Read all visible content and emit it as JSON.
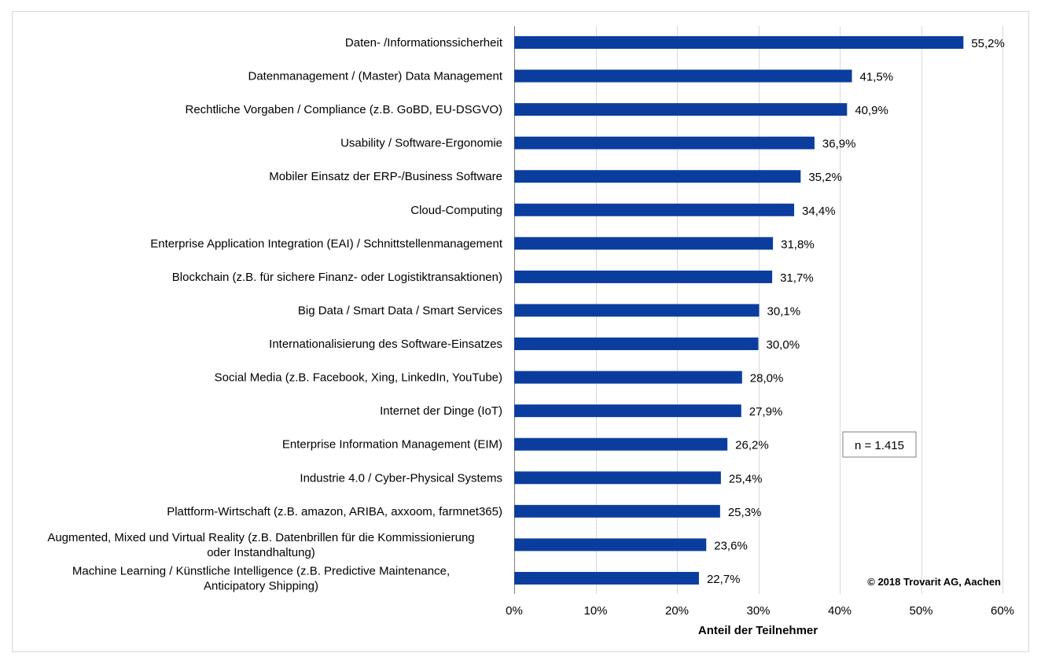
{
  "chart_data": {
    "type": "bar",
    "orientation": "horizontal",
    "categories": [
      [
        "Daten- /Informationssicherheit"
      ],
      [
        "Datenmanagement / (Master) Data Management"
      ],
      [
        "Rechtliche Vorgaben / Compliance (z.B. GoBD, EU-DSGVO)"
      ],
      [
        "Usability / Software-Ergonomie"
      ],
      [
        "Mobiler Einsatz der ERP-/Business Software"
      ],
      [
        "Cloud-Computing"
      ],
      [
        "Enterprise Application Integration (EAI) / Schnittstellenmanagement"
      ],
      [
        "Blockchain (z.B. für sichere Finanz- oder Logistiktransaktionen)"
      ],
      [
        "Big Data / Smart Data / Smart Services"
      ],
      [
        "Internationalisierung des Software-Einsatzes"
      ],
      [
        "Social Media (z.B. Facebook, Xing, LinkedIn, YouTube)"
      ],
      [
        "Internet der Dinge (IoT)"
      ],
      [
        "Enterprise Information Management (EIM)"
      ],
      [
        "Industrie 4.0 / Cyber-Physical Systems"
      ],
      [
        "Plattform-Wirtschaft (z.B. amazon, ARIBA, axxoom, farmnet365)"
      ],
      [
        "Augmented, Mixed und Virtual Reality (z.B. Datenbrillen für die Kommissionierung",
        "oder Instandhaltung)"
      ],
      [
        "Machine Learning / Künstliche Intelligence (z.B. Predictive Maintenance,",
        "Anticipatory Shipping)"
      ]
    ],
    "values": [
      55.2,
      41.5,
      40.9,
      36.9,
      35.2,
      34.4,
      31.8,
      31.7,
      30.1,
      30.0,
      28.0,
      27.9,
      26.2,
      25.4,
      25.3,
      23.6,
      22.7
    ],
    "value_labels": [
      "55,2%",
      "41,5%",
      "40,9%",
      "36,9%",
      "35,2%",
      "34,4%",
      "31,8%",
      "31,7%",
      "30,1%",
      "30,0%",
      "28,0%",
      "27,9%",
      "26,2%",
      "25,4%",
      "25,3%",
      "23,6%",
      "22,7%"
    ],
    "xlim": [
      0,
      60
    ],
    "xticks": [
      0,
      10,
      20,
      30,
      40,
      50,
      60
    ],
    "xtick_labels": [
      "0%",
      "10%",
      "20%",
      "30%",
      "40%",
      "50%",
      "60%"
    ],
    "xlabel": "Anteil der Teilnehmer",
    "ylabel": "",
    "grid": "vertical",
    "legend": "none",
    "annotations": {
      "n_box": "n = 1.415",
      "copyright": "© 2018 Trovarit AG, Aachen"
    },
    "colors": {
      "bar": "#0b3d9e",
      "grid": "#d9d9d9",
      "frame": "#d9d9d9"
    }
  }
}
